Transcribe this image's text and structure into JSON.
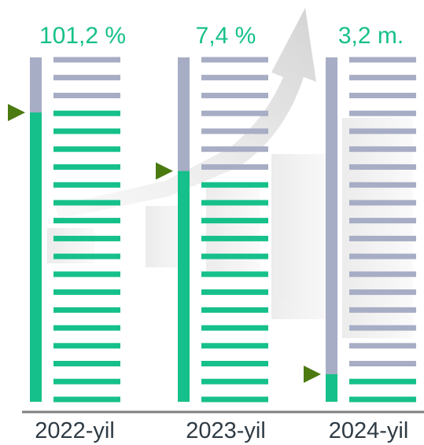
{
  "chart_data": {
    "type": "bar",
    "categories": [
      "2022-yil",
      "2023-yil",
      "2024-yil"
    ],
    "value_labels": [
      "101,2 %",
      "7,4 %",
      "3,2 m."
    ],
    "fill_fraction": [
      0.84,
      0.67,
      0.08
    ],
    "colors": {
      "filled": "#16c08a",
      "empty": "#a7adc4",
      "marker": "#4a7a10",
      "axis": "#7f7f7f",
      "value_text": "#16c08a",
      "year_text": "#2f3b44"
    }
  }
}
